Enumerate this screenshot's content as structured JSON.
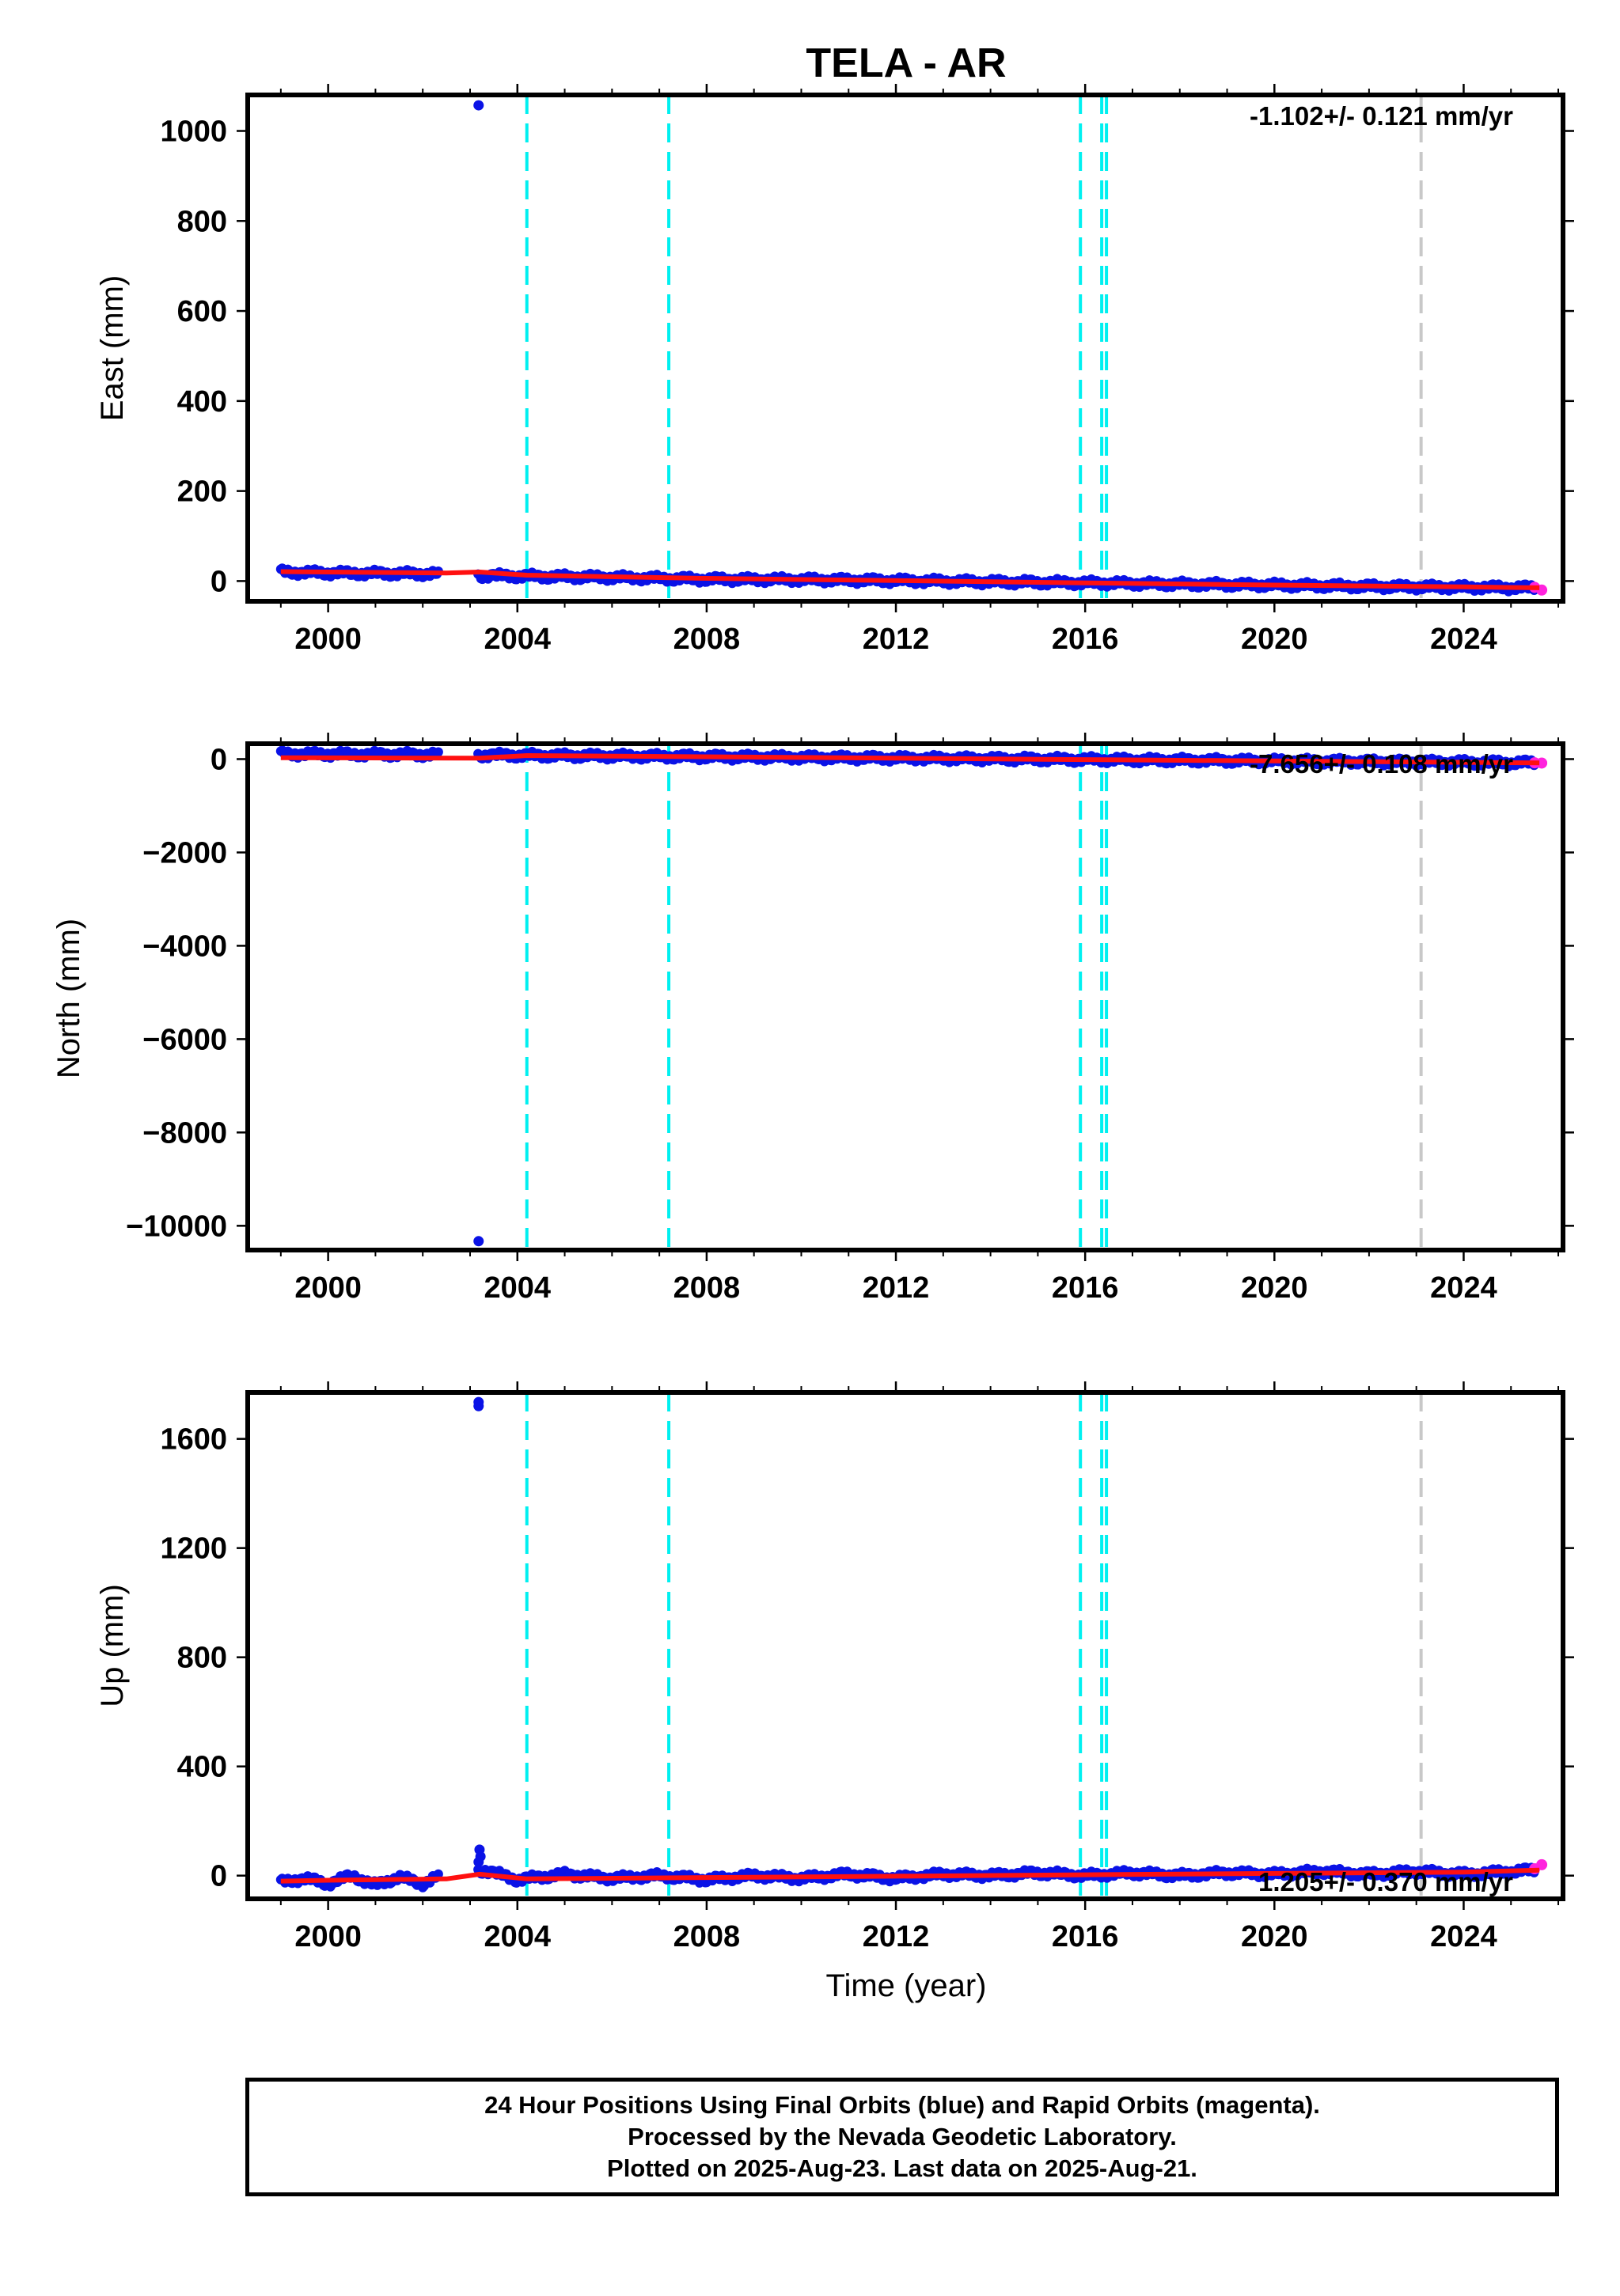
{
  "title": "TELA - AR",
  "xlabel": "Time (year)",
  "colors": {
    "final_orbits": "#0a12e6",
    "rapid_orbits": "#ff22dd",
    "model": "#ff1010",
    "steps": "#00f0f0",
    "later_step": "#c8c8c8",
    "axes": "#000000"
  },
  "chart_data": [
    {
      "type": "scatter",
      "ylabel": "East (mm)",
      "rate_text": "-1.102+/- 0.121 mm/yr",
      "xlim": [
        1998.3,
        2026.1
      ],
      "ylim": [
        -45,
        1080
      ],
      "x_ticks": [
        2000,
        2004,
        2008,
        2012,
        2016,
        2020,
        2024
      ],
      "y_ticks": [
        0,
        200,
        400,
        600,
        800,
        1000
      ],
      "step_years": [
        2004.2,
        2007.2,
        2015.9,
        2016.35,
        2016.45
      ],
      "later_step_years": [
        2023.1
      ],
      "outliers": [
        {
          "x": 2003.18,
          "y": 1057
        }
      ],
      "series": [
        {
          "name": "Final Orbits (blue)",
          "style": "points",
          "color_key": "final_orbits",
          "x": [
            1999.0,
            2000.0,
            2001.0,
            2002.3,
            2003.2,
            2004.0,
            2006.0,
            2008.0,
            2010.0,
            2012.0,
            2014.0,
            2016.0,
            2018.0,
            2020.0,
            2022.0,
            2024.0,
            2025.5
          ],
          "y": [
            20,
            18,
            17,
            16,
            12,
            11,
            8,
            4,
            3,
            1,
            -2,
            -4,
            -7,
            -9,
            -12,
            -14,
            -15
          ]
        },
        {
          "name": "Rapid Orbits (magenta)",
          "style": "points",
          "color_key": "rapid_orbits",
          "x": [
            2025.5,
            2025.65
          ],
          "y": [
            -14,
            -20
          ]
        },
        {
          "name": "model",
          "style": "line",
          "color_key": "model",
          "x": [
            1999.0,
            2002.5,
            2003.2,
            2004.2,
            2008.0,
            2012.0,
            2016.0,
            2020.0,
            2024.0,
            2025.6
          ],
          "y": [
            21,
            18,
            20,
            13,
            6,
            1,
            -4,
            -9,
            -13,
            -15
          ]
        }
      ]
    },
    {
      "type": "scatter",
      "ylabel": "North (mm)",
      "rate_text": "-7.656+/- 0.108 mm/yr",
      "xlim": [
        1998.3,
        2026.1
      ],
      "ylim": [
        -10520,
        330
      ],
      "x_ticks": [
        2000,
        2004,
        2008,
        2012,
        2016,
        2020,
        2024
      ],
      "y_ticks": [
        0,
        -2000,
        -4000,
        -6000,
        -8000,
        -10000
      ],
      "step_years": [
        2004.2,
        2007.2,
        2015.9,
        2016.35,
        2016.45
      ],
      "later_step_years": [
        2023.1
      ],
      "outliers": [
        {
          "x": 2003.18,
          "y": -10330
        }
      ],
      "series": [
        {
          "name": "Final Orbits (blue)",
          "style": "points",
          "color_key": "final_orbits",
          "x": [
            1999.0,
            2000.0,
            2001.0,
            2002.3,
            2003.2,
            2004.0,
            2006.0,
            2008.0,
            2010.0,
            2012.0,
            2014.0,
            2016.0,
            2018.0,
            2020.0,
            2022.0,
            2024.0,
            2025.5
          ],
          "y": [
            110,
            105,
            100,
            95,
            85,
            80,
            65,
            50,
            35,
            20,
            5,
            -10,
            -25,
            -40,
            -55,
            -70,
            -80
          ]
        },
        {
          "name": "Rapid Orbits (magenta)",
          "style": "points",
          "color_key": "rapid_orbits",
          "x": [
            2025.5,
            2025.65
          ],
          "y": [
            -80,
            -85
          ]
        },
        {
          "name": "model",
          "style": "line",
          "color_key": "model",
          "x": [
            1999.0,
            2003.2,
            2004.2,
            2010.0,
            2016.0,
            2020.0,
            2025.6
          ],
          "y": [
            30,
            20,
            75,
            35,
            -10,
            -40,
            -82
          ]
        }
      ]
    },
    {
      "type": "scatter",
      "ylabel": "Up (mm)",
      "rate_text": "1.205+/- 0.370 mm/yr",
      "xlim": [
        1998.3,
        2026.1
      ],
      "ylim": [
        -85,
        1770
      ],
      "x_ticks": [
        2000,
        2004,
        2008,
        2012,
        2016,
        2020,
        2024
      ],
      "y_ticks": [
        0,
        400,
        800,
        1200,
        1600
      ],
      "step_years": [
        2004.2,
        2007.2,
        2015.9,
        2016.35,
        2016.45
      ],
      "later_step_years": [
        2023.1
      ],
      "outliers": [
        {
          "x": 2003.18,
          "y": 1735
        },
        {
          "x": 2003.18,
          "y": 1720
        },
        {
          "x": 2003.2,
          "y": 95
        },
        {
          "x": 2003.22,
          "y": 70
        },
        {
          "x": 2003.18,
          "y": 50
        }
      ],
      "series": [
        {
          "name": "Final Orbits (blue)",
          "style": "points",
          "color_key": "final_orbits",
          "x": [
            1999.0,
            1999.5,
            2000.0,
            2000.5,
            2001.0,
            2001.5,
            2002.0,
            2002.3,
            2003.3,
            2004.0,
            2005.0,
            2006.0,
            2007.0,
            2008.0,
            2009.0,
            2010.0,
            2011.0,
            2012.0,
            2013.0,
            2014.0,
            2015.0,
            2016.0,
            2017.0,
            2018.0,
            2019.0,
            2020.0,
            2021.0,
            2022.0,
            2023.0,
            2024.0,
            2025.0,
            2025.5
          ],
          "y": [
            -25,
            -10,
            -30,
            0,
            -35,
            -5,
            -30,
            -5,
            20,
            -15,
            5,
            -10,
            0,
            -15,
            0,
            -10,
            5,
            -10,
            5,
            0,
            10,
            0,
            10,
            0,
            10,
            5,
            15,
            5,
            15,
            5,
            15,
            20
          ]
        },
        {
          "name": "Rapid Orbits (magenta)",
          "style": "points",
          "color_key": "rapid_orbits",
          "x": [
            2025.5,
            2025.65
          ],
          "y": [
            25,
            40
          ]
        },
        {
          "name": "model",
          "style": "line",
          "color_key": "model",
          "x": [
            1999.0,
            2000.0,
            2002.5,
            2003.2,
            2004.2,
            2008.0,
            2012.0,
            2016.0,
            2020.0,
            2024.0,
            2025.6
          ],
          "y": [
            -20,
            -17,
            -12,
            5,
            -12,
            -7,
            -2,
            3,
            8,
            13,
            20
          ]
        }
      ]
    }
  ],
  "footer": {
    "line1": "24 Hour Positions Using Final Orbits (blue) and Rapid Orbits (magenta).",
    "line2": "Processed by the Nevada Geodetic Laboratory.",
    "line3": "Plotted on 2025-Aug-23. Last data on 2025-Aug-21."
  }
}
